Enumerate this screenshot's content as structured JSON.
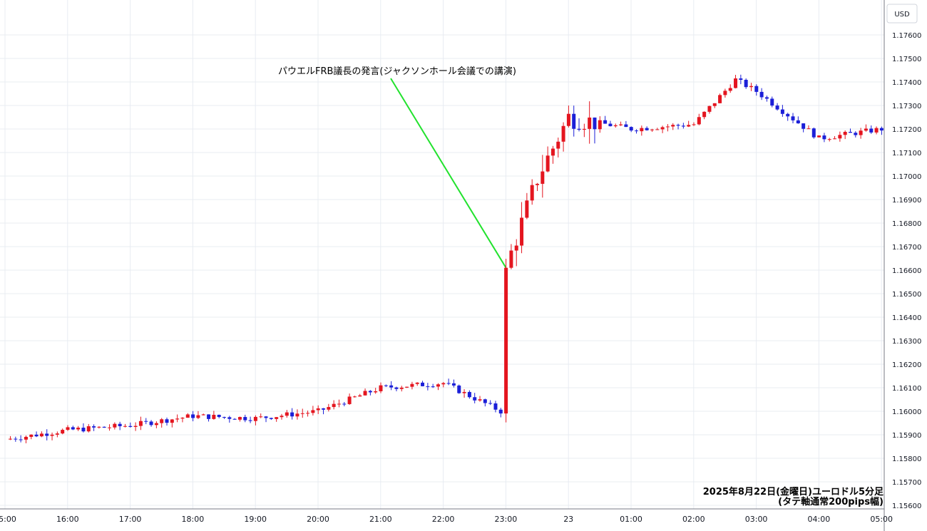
{
  "chart_data": {
    "type": "candlestick",
    "title": "",
    "caption_lines": [
      "2025年8月22日(金曜日)ユーロドル5分足",
      "(タテ軸通常200pips幅)"
    ],
    "currency": "USD",
    "ylim": [
      1.1556,
      1.177
    ],
    "yticks": [
      "1.17600",
      "1.17500",
      "1.17400",
      "1.17300",
      "1.17200",
      "1.17100",
      "1.17000",
      "1.16900",
      "1.16800",
      "1.16700",
      "1.16600",
      "1.16500",
      "1.16400",
      "1.16300",
      "1.16200",
      "1.16100",
      "1.16000",
      "1.15900",
      "1.15800",
      "1.15700",
      "1.15600"
    ],
    "xticks": [
      "15:00",
      "16:00",
      "17:00",
      "18:00",
      "19:00",
      "20:00",
      "21:00",
      "22:00",
      "23:00",
      "23",
      "01:00",
      "02:00",
      "03:00",
      "04:00",
      "05:00"
    ],
    "grid": true,
    "annotation": {
      "text": "パウエルFRB議長の発言(ジャクソンホール会議での講演)",
      "target_time": "23:00",
      "target_price": 1.1661,
      "line_color": "#22e22e"
    },
    "colors": {
      "up": "#e4151f",
      "down": "#1b1fd8",
      "grid": "#e8ecf2",
      "annotation_line": "#22e22e"
    },
    "key_points": [
      {
        "time": "15:00",
        "price": 1.1588
      },
      {
        "time": "16:00",
        "price": 1.1592
      },
      {
        "time": "17:00",
        "price": 1.1594
      },
      {
        "time": "18:00",
        "price": 1.1598
      },
      {
        "time": "19:00",
        "price": 1.1597
      },
      {
        "time": "20:00",
        "price": 1.16
      },
      {
        "time": "21:00",
        "price": 1.161
      },
      {
        "time": "22:00",
        "price": 1.1612
      },
      {
        "time": "22:55",
        "price": 1.16
      },
      {
        "time": "23:00",
        "price": 1.1661
      },
      {
        "time": "23:30",
        "price": 1.1699
      },
      {
        "time": "00:00",
        "price": 1.1725
      },
      {
        "time": "01:00",
        "price": 1.172
      },
      {
        "time": "02:00",
        "price": 1.1722
      },
      {
        "time": "02:40",
        "price": 1.1741
      },
      {
        "time": "03:00",
        "price": 1.1736
      },
      {
        "time": "04:00",
        "price": 1.1716
      },
      {
        "time": "05:00",
        "price": 1.172
      }
    ]
  }
}
